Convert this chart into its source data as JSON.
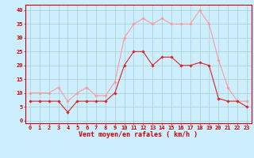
{
  "hours": [
    0,
    1,
    2,
    3,
    4,
    5,
    6,
    7,
    8,
    9,
    10,
    11,
    12,
    13,
    14,
    15,
    16,
    17,
    18,
    19,
    20,
    21,
    22,
    23
  ],
  "wind_avg": [
    7,
    7,
    7,
    7,
    3,
    7,
    7,
    7,
    7,
    10,
    20,
    25,
    25,
    20,
    23,
    23,
    20,
    20,
    21,
    20,
    8,
    7,
    7,
    5
  ],
  "wind_gust": [
    10,
    10,
    10,
    12,
    7,
    10,
    12,
    9,
    9,
    14,
    30,
    35,
    37,
    35,
    37,
    35,
    35,
    35,
    40,
    35,
    22,
    12,
    7,
    7
  ],
  "color_avg": "#dd2222",
  "color_gust": "#ff9999",
  "bg_color": "#cceeff",
  "grid_color": "#aacccc",
  "xlabel": "Vent moyen/en rafales ( km/h )",
  "yticks": [
    0,
    5,
    10,
    15,
    20,
    25,
    30,
    35,
    40
  ],
  "xlim": [
    -0.5,
    23.5
  ],
  "ylim": [
    -1,
    42
  ],
  "tick_fontsize": 5.0,
  "label_fontsize": 6.0
}
